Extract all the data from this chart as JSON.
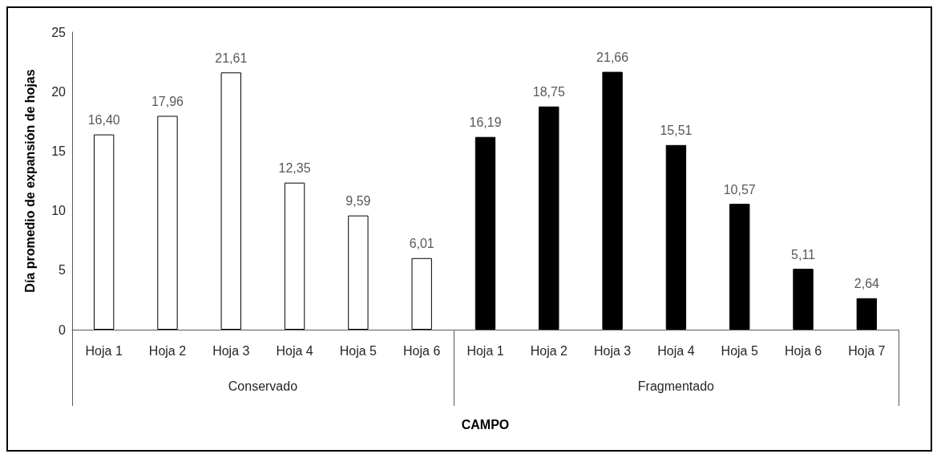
{
  "chart_data": {
    "type": "bar",
    "xlabel": "CAMPO",
    "ylabel": "Día promedio de expansión de hojas",
    "categories": [
      "Hoja 1",
      "Hoja 2",
      "Hoja 3",
      "Hoja 4",
      "Hoja 5",
      "Hoja 6",
      "Hoja 1",
      "Hoja 2",
      "Hoja 3",
      "Hoja 4",
      "Hoja 5",
      "Hoja 6",
      "Hoja 7"
    ],
    "series": [
      {
        "color": "#ffffff",
        "values": [
          16.4,
          17.96,
          21.61,
          12.35,
          9.59,
          6.01,
          null,
          null,
          null,
          null,
          null,
          null,
          null
        ],
        "value_labels": [
          "16,40",
          "17,96",
          "21,61",
          "12,35",
          "9,59",
          "6,01",
          null,
          null,
          null,
          null,
          null,
          null,
          null
        ]
      },
      {
        "color": "#000000",
        "values": [
          null,
          null,
          null,
          null,
          null,
          null,
          16.19,
          18.75,
          21.66,
          15.51,
          10.57,
          5.11,
          2.64
        ],
        "value_labels": [
          null,
          null,
          null,
          null,
          null,
          null,
          "16,19",
          "18,75",
          "21,66",
          "15,51",
          "10,57",
          "5,11",
          "2,64"
        ]
      }
    ],
    "annotations": [
      "Conservado",
      "Fragmentado"
    ],
    "ylim": [
      0,
      25
    ],
    "yticks": [
      0,
      5,
      10,
      15,
      20,
      25
    ],
    "grid": false
  }
}
